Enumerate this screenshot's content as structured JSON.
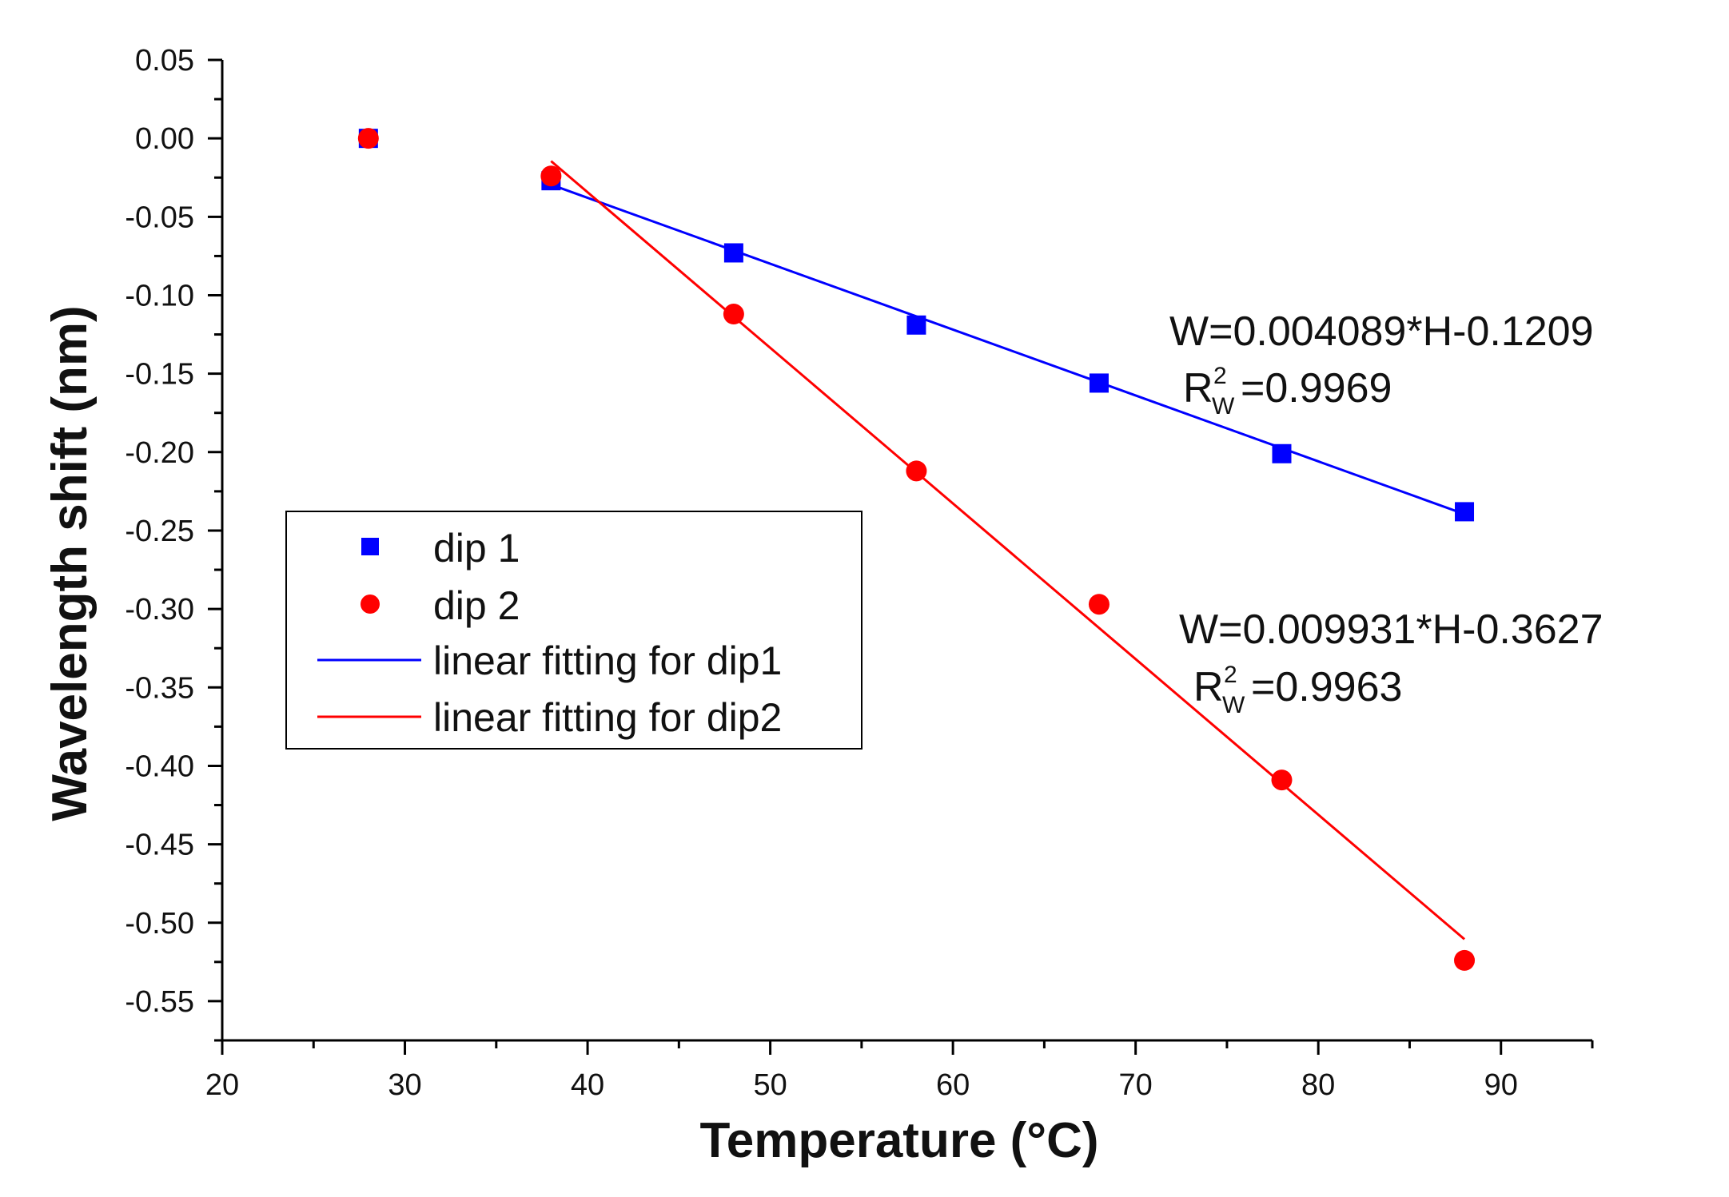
{
  "chart_data": {
    "type": "scatter",
    "xlabel": "Temperature (°C)",
    "ylabel": "Wavelength shift (nm)",
    "xlim": [
      20,
      95
    ],
    "ylim": [
      -0.575,
      0.05
    ],
    "x_ticks": [
      20,
      30,
      40,
      50,
      60,
      70,
      80,
      90
    ],
    "x_tick_labels": [
      "20",
      "30",
      "40",
      "50",
      "60",
      "70",
      "80",
      "90"
    ],
    "y_ticks": [
      0.05,
      0.0,
      -0.05,
      -0.1,
      -0.15,
      -0.2,
      -0.25,
      -0.3,
      -0.35,
      -0.4,
      -0.45,
      -0.5,
      -0.55
    ],
    "y_tick_labels": [
      "0.05",
      "0.00",
      "-0.05",
      "-0.10",
      "-0.15",
      "-0.20",
      "-0.25",
      "-0.30",
      "-0.35",
      "-0.40",
      "-0.45",
      "-0.50",
      "-0.55"
    ],
    "series": [
      {
        "name": "dip 1",
        "marker": "square",
        "color": "#0000FF",
        "x": [
          28,
          38,
          48,
          58,
          68,
          78,
          88
        ],
        "y": [
          0.0,
          -0.027,
          -0.073,
          -0.119,
          -0.156,
          -0.201,
          -0.238
        ]
      },
      {
        "name": "dip 2",
        "marker": "circle",
        "color": "#FF0000",
        "x": [
          28,
          38,
          48,
          58,
          68,
          78,
          88
        ],
        "y": [
          0.0,
          -0.024,
          -0.112,
          -0.212,
          -0.297,
          -0.409,
          -0.524
        ]
      }
    ],
    "fits": [
      {
        "name": "linear fitting for dip1",
        "color": "#0000FF",
        "x": [
          38,
          88
        ],
        "y": [
          -0.0295,
          -0.2395
        ]
      },
      {
        "name": "linear fitting for dip2",
        "color": "#FF0000",
        "x": [
          38,
          88
        ],
        "y": [
          -0.0145,
          -0.5105
        ]
      }
    ],
    "legend": {
      "placement": "middle-left",
      "entries": [
        "dip 1",
        "dip 2",
        "linear fitting for dip1",
        "linear fitting for dip2"
      ]
    },
    "annotations": [
      {
        "equation": "W=0.004089*H-0.1209",
        "r_letter": "R",
        "r_sup": "2",
        "r_sub": "W",
        "r_value": "=0.9969"
      },
      {
        "equation": "W=0.009931*H-0.3627",
        "r_letter": "R",
        "r_sup": "2",
        "r_sub": "W",
        "r_value": "=0.9963"
      }
    ]
  }
}
